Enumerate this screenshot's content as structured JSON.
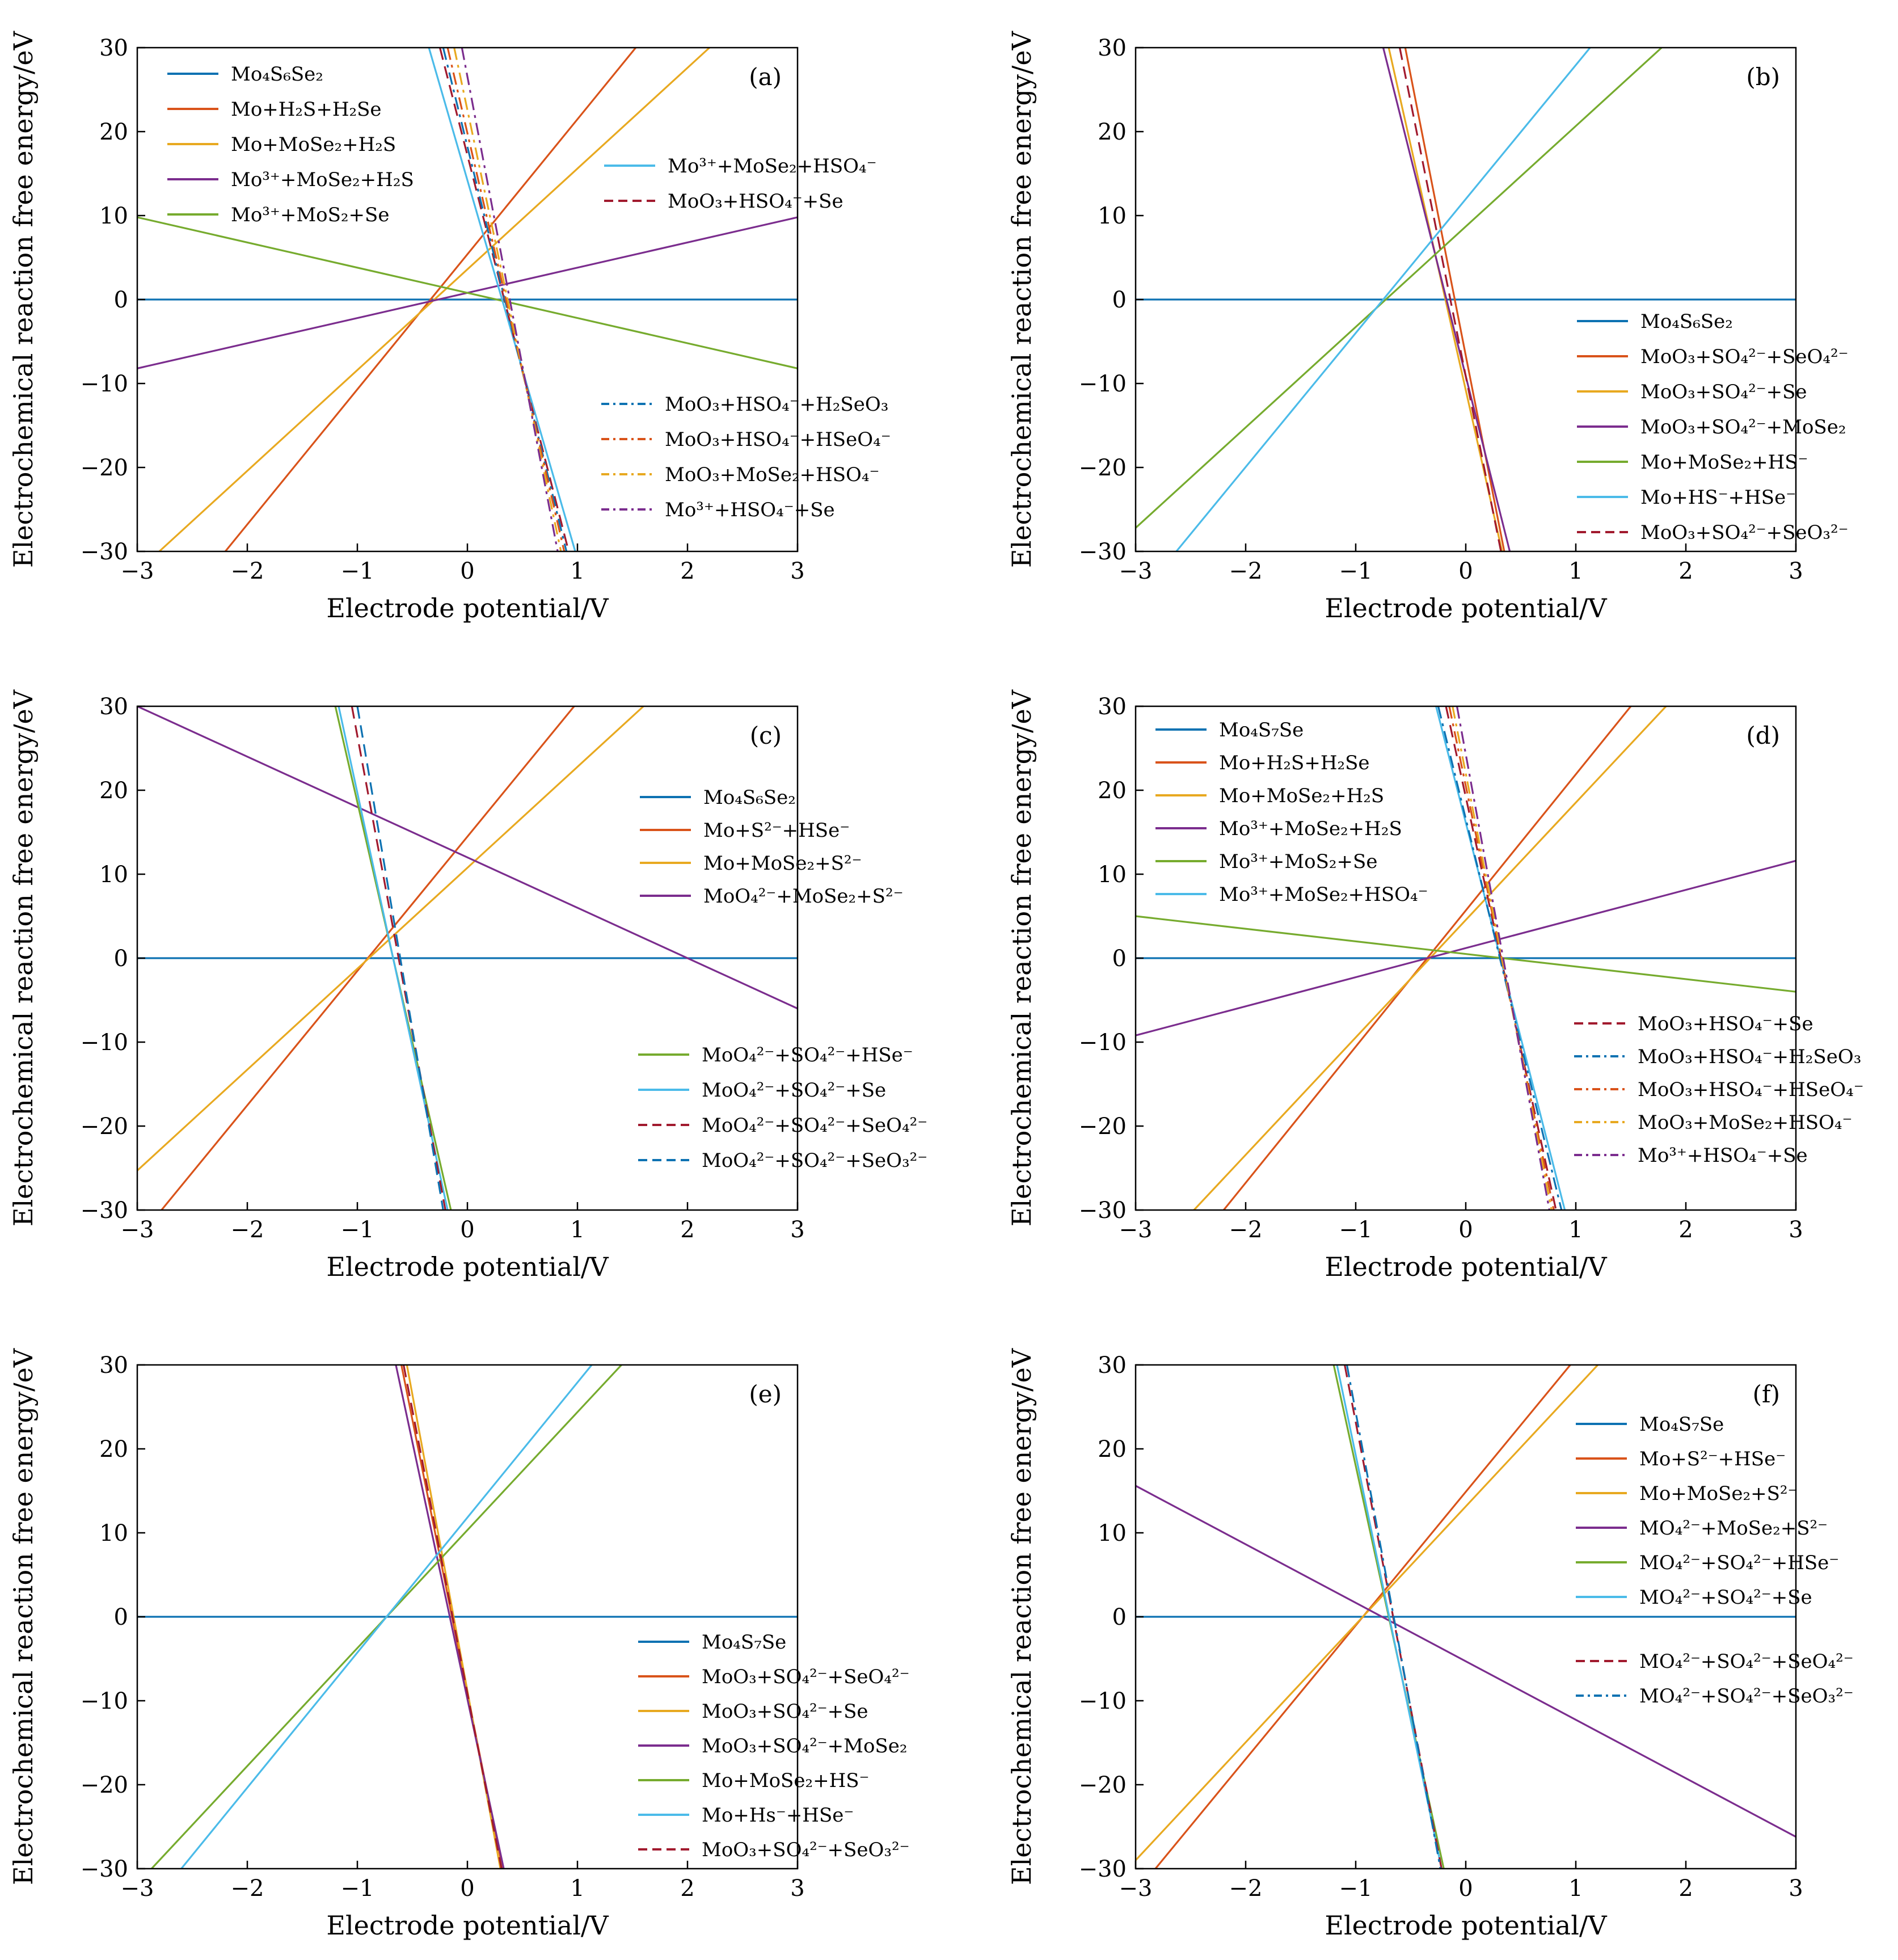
{
  "colors": {
    "blue": "#0d72b2",
    "orange": "#d9531a",
    "yellow": "#e8a920",
    "purple": "#7b2d8e",
    "green": "#76ab2e",
    "cyan": "#4bbbe9",
    "darkred": "#a11a2e"
  },
  "chart_data": [
    {
      "panel": "(a)",
      "type": "line",
      "xlabel": "Electrode potential/V",
      "ylabel": "Electrochemical reaction free energy/eV",
      "xlim": [
        -3,
        3
      ],
      "ylim": [
        -30,
        30
      ],
      "xticks": [
        "−3",
        "−2",
        "−1",
        "0",
        "1",
        "2",
        "3"
      ],
      "yticks": [
        "−30",
        "−20",
        "−10",
        "0",
        "10",
        "20",
        "30"
      ],
      "legend_groups": "top-left, top-right, bottom-right",
      "series": [
        {
          "name": "Mo₄S₆Se₂",
          "color": "blue",
          "style": "solid",
          "x": [
            -3,
            3
          ],
          "y": [
            0,
            0
          ]
        },
        {
          "name": "Mo+H₂S+H₂Se",
          "color": "orange",
          "style": "solid",
          "x": [
            -2.2,
            1.53
          ],
          "y": [
            -30,
            30
          ]
        },
        {
          "name": "Mo+MoSe₂+H₂S",
          "color": "yellow",
          "style": "solid",
          "x": [
            -2.8,
            2.2
          ],
          "y": [
            -30,
            30
          ]
        },
        {
          "name": "Mo³⁺+MoSe₂+H₂S",
          "color": "purple",
          "style": "solid",
          "x": [
            -3,
            3
          ],
          "y": [
            -8.2,
            9.8
          ]
        },
        {
          "name": "Mo³⁺+MoS₂+Se",
          "color": "green",
          "style": "solid",
          "x": [
            -3,
            3
          ],
          "y": [
            9.8,
            -8.2
          ]
        },
        {
          "name": "Mo³⁺+MoSe₂+HSO₄⁻",
          "color": "cyan",
          "style": "solid",
          "x": [
            -0.35,
            0.98
          ],
          "y": [
            30,
            -30
          ]
        },
        {
          "name": "MoO₃+HSO₄⁻+Se",
          "color": "darkred",
          "style": "dashed",
          "x": [
            -0.25,
            0.92
          ],
          "y": [
            30,
            -30
          ]
        },
        {
          "name": "MoO₃+HSO₄⁻+H₂SeO₃",
          "color": "blue",
          "style": "dashdot",
          "x": [
            -0.22,
            0.9
          ],
          "y": [
            30,
            -30
          ]
        },
        {
          "name": "MoO₃+HSO₄⁻+HSeO₄⁻",
          "color": "orange",
          "style": "dashdot",
          "x": [
            -0.18,
            0.88
          ],
          "y": [
            30,
            -30
          ]
        },
        {
          "name": "MoO₃+MoSe₂+HSO₄⁻",
          "color": "yellow",
          "style": "dashdot",
          "x": [
            -0.12,
            0.85
          ],
          "y": [
            30,
            -30
          ]
        },
        {
          "name": "Mo³⁺+HSO₄⁻+Se",
          "color": "purple",
          "style": "dashdot",
          "x": [
            -0.05,
            0.82
          ],
          "y": [
            30,
            -30
          ]
        }
      ]
    },
    {
      "panel": "(b)",
      "type": "line",
      "xlabel": "Electrode potential/V",
      "ylabel": "Electrochemical reaction free energy/eV",
      "xlim": [
        -3,
        3
      ],
      "ylim": [
        -30,
        30
      ],
      "xticks": [
        "−3",
        "−2",
        "−1",
        "0",
        "1",
        "2",
        "3"
      ],
      "yticks": [
        "−30",
        "−20",
        "−10",
        "0",
        "10",
        "20",
        "30"
      ],
      "legend_groups": "bottom-right",
      "series": [
        {
          "name": "Mo₄S₆Se₂",
          "color": "blue",
          "style": "solid",
          "x": [
            -3,
            3
          ],
          "y": [
            0,
            0
          ]
        },
        {
          "name": "MoO₃+SO₄²⁻+SeO₄²⁻",
          "color": "orange",
          "style": "solid",
          "x": [
            -0.55,
            0.35
          ],
          "y": [
            30,
            -30
          ]
        },
        {
          "name": "MoO₃+SO₄²⁻+Se",
          "color": "yellow",
          "style": "solid",
          "x": [
            -0.7,
            0.33
          ],
          "y": [
            30,
            -30
          ]
        },
        {
          "name": "MoO₃+SO₄²⁻+MoSe₂",
          "color": "purple",
          "style": "solid",
          "x": [
            -0.75,
            0.4
          ],
          "y": [
            30,
            -30
          ]
        },
        {
          "name": "Mo+MoSe₂+HS⁻",
          "color": "green",
          "style": "solid",
          "x": [
            -3,
            1.78
          ],
          "y": [
            -27.2,
            30
          ]
        },
        {
          "name": "Mo+HS⁻+HSe⁻",
          "color": "cyan",
          "style": "solid",
          "x": [
            -2.63,
            1.13
          ],
          "y": [
            -30,
            30
          ]
        },
        {
          "name": "MoO₃+SO₄²⁻+SeO₃²⁻",
          "color": "darkred",
          "style": "dashed",
          "x": [
            -0.6,
            0.32
          ],
          "y": [
            30,
            -30
          ]
        }
      ]
    },
    {
      "panel": "(c)",
      "type": "line",
      "xlabel": "Electrode potential/V",
      "ylabel": "Electrochemical reaction free energy/eV",
      "xlim": [
        -3,
        3
      ],
      "ylim": [
        -30,
        30
      ],
      "xticks": [
        "−3",
        "−2",
        "−1",
        "0",
        "1",
        "2",
        "3"
      ],
      "yticks": [
        "−30",
        "−20",
        "−10",
        "0",
        "10",
        "20",
        "30"
      ],
      "legend_groups": "top-right, bottom-right",
      "series": [
        {
          "name": "Mo₄S₆Se₂",
          "color": "blue",
          "style": "solid",
          "x": [
            -3,
            3
          ],
          "y": [
            0,
            0
          ]
        },
        {
          "name": "Mo+S²⁻+HSe⁻",
          "color": "orange",
          "style": "solid",
          "x": [
            -2.78,
            0.97
          ],
          "y": [
            -30,
            30
          ]
        },
        {
          "name": "Mo+MoSe₂+S²⁻",
          "color": "yellow",
          "style": "solid",
          "x": [
            -3,
            1.6
          ],
          "y": [
            -25.3,
            30
          ]
        },
        {
          "name": "MoO₄²⁻+MoSe₂+S²⁻",
          "color": "purple",
          "style": "solid",
          "x": [
            -3,
            3
          ],
          "y": [
            30,
            -6
          ]
        },
        {
          "name": "MoO₄²⁻+SO₄²⁻+HSe⁻",
          "color": "green",
          "style": "solid",
          "x": [
            -1.2,
            -0.15
          ],
          "y": [
            30,
            -30
          ]
        },
        {
          "name": "MoO₄²⁻+SO₄²⁻+Se",
          "color": "cyan",
          "style": "solid",
          "x": [
            -1.17,
            -0.18
          ],
          "y": [
            30,
            -30
          ]
        },
        {
          "name": "MoO₄²⁻+SO₄²⁻+SeO₄²⁻",
          "color": "darkred",
          "style": "dashed",
          "x": [
            -1.05,
            -0.2
          ],
          "y": [
            30,
            -30
          ]
        },
        {
          "name": "MoO₄²⁻+SO₄²⁻+SeO₃²⁻",
          "color": "blue",
          "style": "dashed",
          "x": [
            -1.0,
            -0.22
          ],
          "y": [
            30,
            -30
          ]
        }
      ]
    },
    {
      "panel": "(d)",
      "type": "line",
      "xlabel": "Electrode potential/V",
      "ylabel": "Electrochemical reaction free energy/eV",
      "xlim": [
        -3,
        3
      ],
      "ylim": [
        -30,
        30
      ],
      "xticks": [
        "−3",
        "−2",
        "−1",
        "0",
        "1",
        "2",
        "3"
      ],
      "yticks": [
        "−30",
        "−20",
        "−10",
        "0",
        "10",
        "20",
        "30"
      ],
      "legend_groups": "top-left, bottom-right",
      "series": [
        {
          "name": "Mo₄S₇Se",
          "color": "blue",
          "style": "solid",
          "x": [
            -3,
            3
          ],
          "y": [
            0,
            0
          ]
        },
        {
          "name": "Mo+H₂S+H₂Se",
          "color": "orange",
          "style": "solid",
          "x": [
            -2.2,
            1.5
          ],
          "y": [
            -30,
            30
          ]
        },
        {
          "name": "Mo+MoSe₂+H₂S",
          "color": "yellow",
          "style": "solid",
          "x": [
            -2.47,
            1.82
          ],
          "y": [
            -30,
            30
          ]
        },
        {
          "name": "Mo³⁺+MoSe₂+H₂S",
          "color": "purple",
          "style": "solid",
          "x": [
            -3,
            3
          ],
          "y": [
            -9.2,
            11.6
          ]
        },
        {
          "name": "Mo³⁺+MoS₂+Se",
          "color": "green",
          "style": "solid",
          "x": [
            -3,
            3
          ],
          "y": [
            5,
            -4
          ]
        },
        {
          "name": "Mo³⁺+MoSe₂+HSO₄⁻",
          "color": "cyan",
          "style": "solid",
          "x": [
            -0.27,
            0.9
          ],
          "y": [
            30,
            -30
          ]
        },
        {
          "name": "MoO₃+HSO₄⁻+Se",
          "color": "darkred",
          "style": "dashed",
          "x": [
            -0.18,
            0.82
          ],
          "y": [
            30,
            -30
          ]
        },
        {
          "name": "MoO₃+HSO₄⁻+H₂SeO₃",
          "color": "blue",
          "style": "dashdot",
          "x": [
            -0.25,
            0.87
          ],
          "y": [
            30,
            -30
          ]
        },
        {
          "name": "MoO₃+HSO₄⁻+HSeO₄⁻",
          "color": "orange",
          "style": "dashdot",
          "x": [
            -0.15,
            0.8
          ],
          "y": [
            30,
            -30
          ]
        },
        {
          "name": "MoO₃+MoSe₂+HSO₄⁻",
          "color": "yellow",
          "style": "dashdot",
          "x": [
            -0.12,
            0.78
          ],
          "y": [
            30,
            -30
          ]
        },
        {
          "name": "Mo³⁺+HSO₄⁻+Se",
          "color": "purple",
          "style": "dashdot",
          "x": [
            -0.08,
            0.76
          ],
          "y": [
            30,
            -30
          ]
        }
      ]
    },
    {
      "panel": "(e)",
      "type": "line",
      "xlabel": "Electrode potential/V",
      "ylabel": "Electrochemical reaction free energy/eV",
      "xlim": [
        -3,
        3
      ],
      "ylim": [
        -30,
        30
      ],
      "xticks": [
        "−3",
        "−2",
        "−1",
        "0",
        "1",
        "2",
        "3"
      ],
      "yticks": [
        "−30",
        "−20",
        "−10",
        "0",
        "10",
        "20",
        "30"
      ],
      "legend_groups": "bottom-right",
      "series": [
        {
          "name": "Mo₄S₇Se",
          "color": "blue",
          "style": "solid",
          "x": [
            -3,
            3
          ],
          "y": [
            0,
            0
          ]
        },
        {
          "name": "MoO₃+SO₄²⁻+SeO₄²⁻",
          "color": "orange",
          "style": "solid",
          "x": [
            -0.6,
            0.32
          ],
          "y": [
            30,
            -30
          ]
        },
        {
          "name": "MoO₃+SO₄²⁻+Se",
          "color": "yellow",
          "style": "solid",
          "x": [
            -0.55,
            0.3
          ],
          "y": [
            30,
            -30
          ]
        },
        {
          "name": "MoO₃+SO₄²⁻+MoSe₂",
          "color": "purple",
          "style": "solid",
          "x": [
            -0.65,
            0.33
          ],
          "y": [
            30,
            -30
          ]
        },
        {
          "name": "Mo+MoSe₂+HS⁻",
          "color": "green",
          "style": "solid",
          "x": [
            -2.87,
            1.4
          ],
          "y": [
            -30,
            30
          ]
        },
        {
          "name": "Mo+Hs⁻+HSe⁻",
          "color": "cyan",
          "style": "solid",
          "x": [
            -2.6,
            1.13
          ],
          "y": [
            -30,
            30
          ]
        },
        {
          "name": "MoO₃+SO₄²⁻+SeO₃²⁻",
          "color": "darkred",
          "style": "dashed",
          "x": [
            -0.58,
            0.31
          ],
          "y": [
            30,
            -30
          ]
        }
      ]
    },
    {
      "panel": "(f)",
      "type": "line",
      "xlabel": "Electrode potential/V",
      "ylabel": "Electrochemical reaction free energy/eV",
      "xlim": [
        -3,
        3
      ],
      "ylim": [
        -30,
        30
      ],
      "xticks": [
        "−3",
        "−2",
        "−1",
        "0",
        "1",
        "2",
        "3"
      ],
      "yticks": [
        "−30",
        "−20",
        "−10",
        "0",
        "10",
        "20",
        "30"
      ],
      "legend_groups": "top-right, middle-right",
      "series": [
        {
          "name": "Mo₄S₇Se",
          "color": "blue",
          "style": "solid",
          "x": [
            -3,
            3
          ],
          "y": [
            0,
            0
          ]
        },
        {
          "name": "Mo+S²⁻+HSe⁻",
          "color": "orange",
          "style": "solid",
          "x": [
            -2.82,
            0.95
          ],
          "y": [
            -30,
            30
          ]
        },
        {
          "name": "Mo+MoSe₂+S²⁻",
          "color": "yellow",
          "style": "solid",
          "x": [
            -3,
            1.2
          ],
          "y": [
            -29,
            30
          ]
        },
        {
          "name": "MO₄²⁻+MoSe₂+S²⁻",
          "color": "purple",
          "style": "solid",
          "x": [
            -3,
            3
          ],
          "y": [
            15.6,
            -26.2
          ]
        },
        {
          "name": "MO₄²⁻+SO₄²⁻+HSe⁻",
          "color": "green",
          "style": "solid",
          "x": [
            -1.2,
            -0.2
          ],
          "y": [
            30,
            -30
          ]
        },
        {
          "name": "MO₄²⁻+SO₄²⁻+Se",
          "color": "cyan",
          "style": "solid",
          "x": [
            -1.17,
            -0.22
          ],
          "y": [
            30,
            -30
          ]
        },
        {
          "name": "MO₄²⁻+SO₄²⁻+SeO₄²⁻",
          "color": "darkred",
          "style": "dashed",
          "x": [
            -1.1,
            -0.22
          ],
          "y": [
            30,
            -30
          ]
        },
        {
          "name": "MO₄²⁻+SO₄²⁻+SeO₃²⁻",
          "color": "blue",
          "style": "dashdot",
          "x": [
            -1.08,
            -0.23
          ],
          "y": [
            30,
            -30
          ]
        }
      ]
    }
  ]
}
